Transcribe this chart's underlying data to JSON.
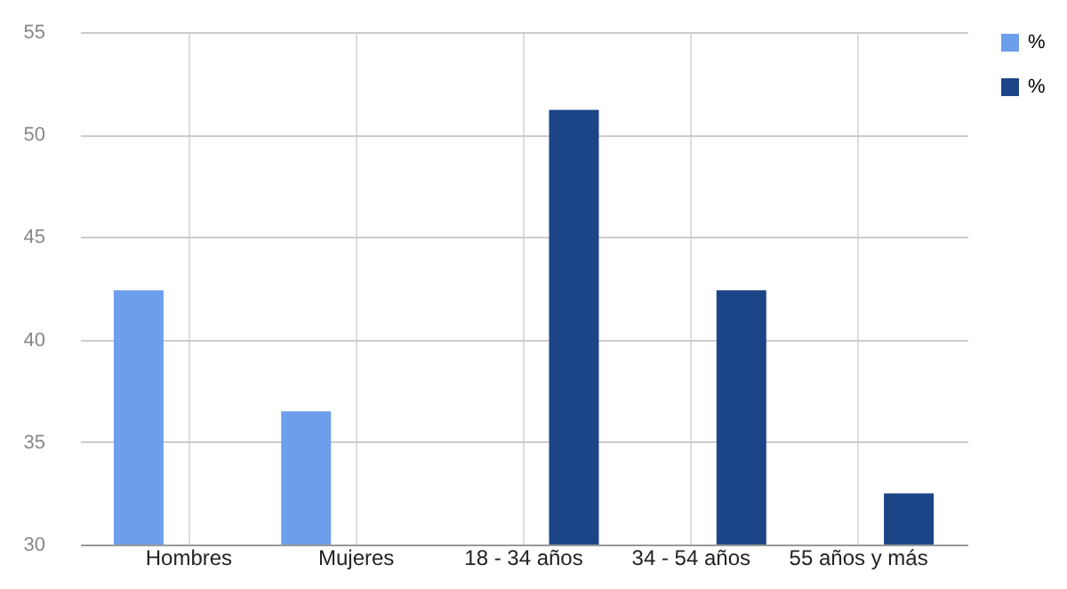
{
  "chart_data": {
    "type": "bar",
    "categories": [
      "Hombres",
      "Mujeres",
      "18 - 34 años",
      "34 - 54 años",
      "55 años y más"
    ],
    "series": [
      {
        "name": "%",
        "color": "#6d9eeb",
        "values": [
          42.4,
          36.5,
          null,
          null,
          null
        ]
      },
      {
        "name": "%",
        "color": "#1c4587",
        "values": [
          null,
          null,
          51.2,
          42.4,
          32.5
        ]
      }
    ],
    "ylim": [
      30,
      55
    ],
    "yticks": [
      30,
      35,
      40,
      45,
      50,
      55
    ],
    "grid": true,
    "legend": "top right"
  }
}
